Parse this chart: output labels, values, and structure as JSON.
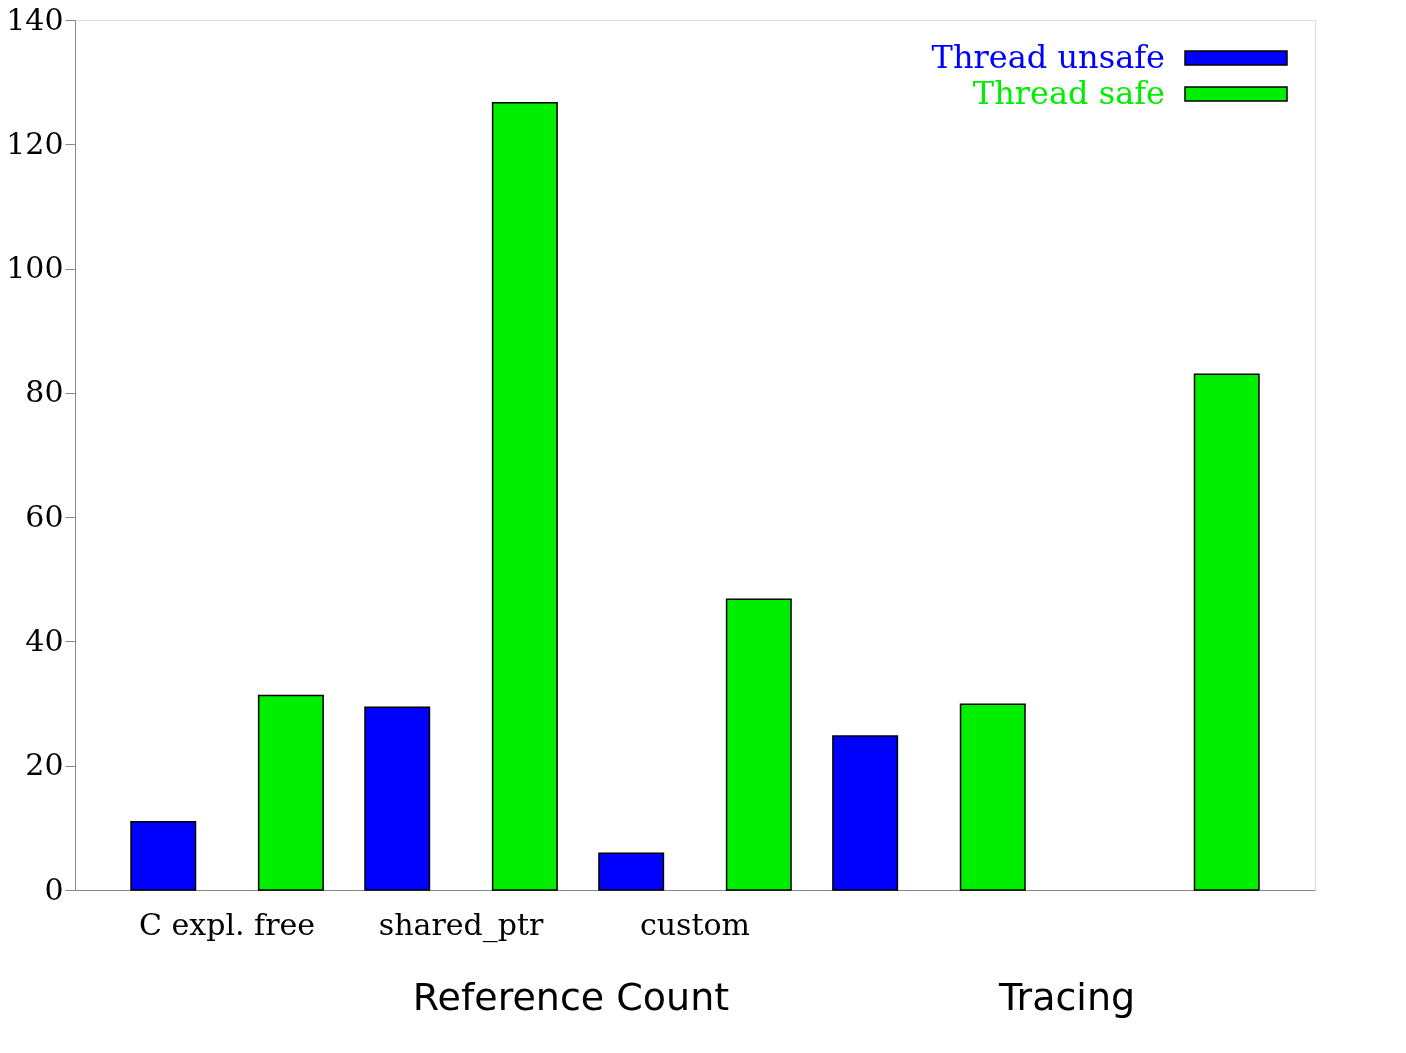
{
  "chart_data": {
    "type": "bar",
    "categories": [
      "C expl. free",
      "shared_ptr",
      "custom",
      null,
      null
    ],
    "series": [
      {
        "name": "Thread unsafe",
        "color": "#0000ff",
        "values": [
          11,
          29.4,
          5.9,
          24.8,
          null
        ]
      },
      {
        "name": "Thread safe",
        "color": "#00ee00",
        "values": [
          31.3,
          126.7,
          46.8,
          29.9,
          83.0
        ]
      }
    ],
    "ylim": [
      0,
      140
    ],
    "yticks": [
      0,
      20,
      40,
      60,
      80,
      100,
      120,
      140
    ],
    "grid": false,
    "legend": "top right",
    "annotations": [
      "Reference Count",
      "Tracing"
    ]
  }
}
